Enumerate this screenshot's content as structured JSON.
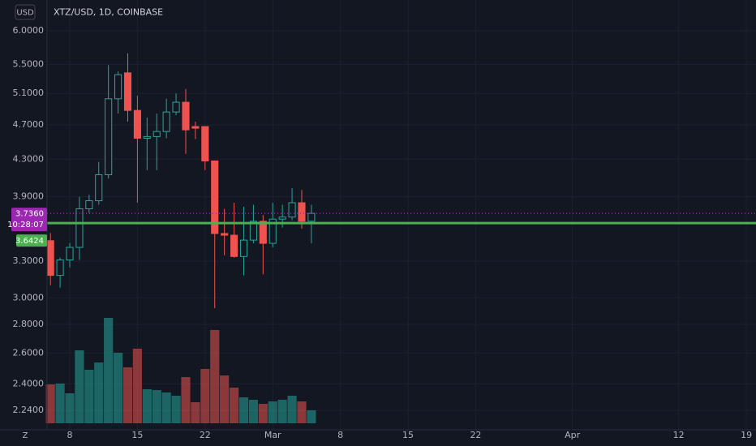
{
  "chart_data": {
    "type": "candlestick",
    "title": "XTZ/USD, 1D, COINBASE",
    "currency": "USD",
    "log_scale": true,
    "grid": true,
    "up_color": "#26a69a",
    "down_color": "#ef5350",
    "x": [
      0,
      1,
      2,
      3,
      4,
      5,
      6,
      7,
      8,
      9,
      10,
      11,
      12,
      13,
      14,
      15,
      16,
      17,
      18,
      19,
      20,
      21,
      22,
      23,
      24,
      25,
      26,
      27
    ],
    "open": [
      3.48,
      3.18,
      3.31,
      3.42,
      3.78,
      3.86,
      4.13,
      5.03,
      5.38,
      4.88,
      4.54,
      4.56,
      4.62,
      4.86,
      4.985,
      4.68,
      4.68,
      4.28,
      3.545,
      3.53,
      3.34,
      3.485,
      3.66,
      3.456,
      3.68,
      3.7,
      3.84,
      3.66
    ],
    "high": [
      3.55,
      3.33,
      3.46,
      3.9,
      3.92,
      4.27,
      5.49,
      5.4,
      5.66,
      5.07,
      4.79,
      4.84,
      5.03,
      5.1,
      5.16,
      4.74,
      4.68,
      4.28,
      3.78,
      3.84,
      3.8,
      3.82,
      3.72,
      3.84,
      3.82,
      3.99,
      3.97,
      3.82
    ],
    "low": [
      3.1,
      3.08,
      3.245,
      3.31,
      3.74,
      3.82,
      4.09,
      4.84,
      4.74,
      3.84,
      4.18,
      4.18,
      4.54,
      4.82,
      4.36,
      4.53,
      4.18,
      2.92,
      3.35,
      3.33,
      3.18,
      3.456,
      3.19,
      3.42,
      3.6,
      3.67,
      3.59,
      3.456
    ],
    "close": [
      3.18,
      3.31,
      3.42,
      3.78,
      3.86,
      4.13,
      5.03,
      5.355,
      4.88,
      4.54,
      4.56,
      4.62,
      4.86,
      4.985,
      4.64,
      4.66,
      4.28,
      3.545,
      3.53,
      3.34,
      3.485,
      3.66,
      3.456,
      3.68,
      3.7,
      3.84,
      3.66,
      3.736
    ],
    "volume": [
      48,
      49,
      37,
      90,
      66,
      75,
      130,
      87,
      69,
      92,
      42,
      41,
      38,
      34,
      57,
      26,
      67,
      115,
      59,
      44,
      32,
      29,
      24,
      27,
      29,
      34,
      27,
      16
    ],
    "xlim": [
      -0.35,
      73.0
    ],
    "xticks": [
      {
        "value": 2,
        "label": "8"
      },
      {
        "value": 9,
        "label": "15"
      },
      {
        "value": 16,
        "label": "22"
      },
      {
        "value": 23,
        "label": "Mar"
      },
      {
        "value": 30,
        "label": "8"
      },
      {
        "value": 37,
        "label": "15"
      },
      {
        "value": 44,
        "label": "22"
      },
      {
        "value": 54,
        "label": "Apr"
      },
      {
        "value": 65,
        "label": "12"
      },
      {
        "value": 72,
        "label": "19"
      }
    ],
    "ylim": [
      2.13,
      6.5
    ],
    "yticks": [
      {
        "value": 6,
        "label": "6.0000"
      },
      {
        "value": 5.5,
        "label": "5.5000"
      },
      {
        "value": 5.1,
        "label": "5.1000"
      },
      {
        "value": 4.7,
        "label": "4.7000"
      },
      {
        "value": 4.3,
        "label": "4.3000"
      },
      {
        "value": 3.9,
        "label": "3.9000"
      },
      {
        "value": 3.3,
        "label": "3.3000"
      },
      {
        "value": 3,
        "label": "3.0000"
      },
      {
        "value": 2.8,
        "label": "2.8000"
      },
      {
        "value": 2.6,
        "label": "2.6000"
      },
      {
        "value": 2.4,
        "label": "2.4000"
      },
      {
        "value": 2.24,
        "label": "2.2400"
      }
    ],
    "current_price": {
      "value": 3.736,
      "label": "3.7360",
      "countdown": "10:28:07",
      "color": "#9c27b0"
    },
    "level_line": {
      "value": 3.6424,
      "label": "3.6424",
      "color": "#4caf50"
    },
    "timezone_button": "Z"
  }
}
